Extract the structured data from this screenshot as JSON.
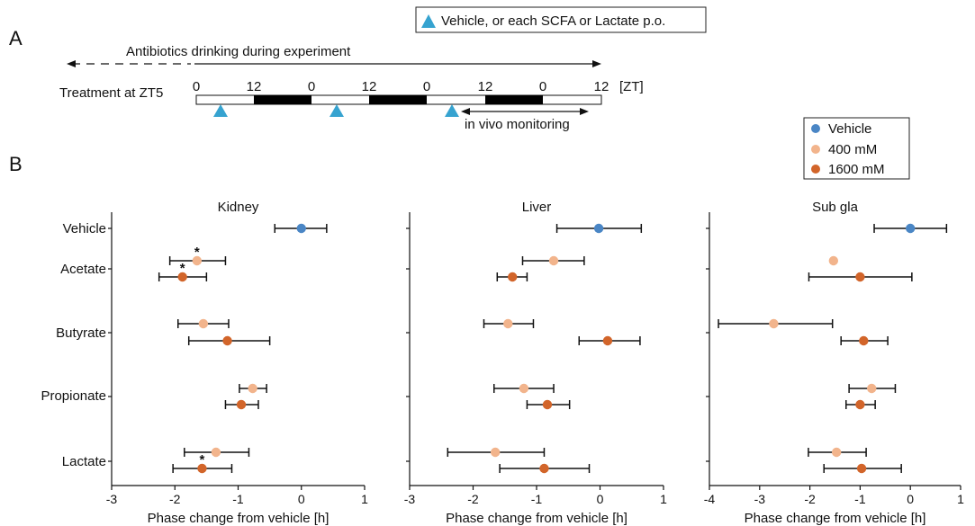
{
  "panel_a": {
    "letter": "A",
    "legend_text": "Vehicle, or each SCFA or Lactate p.o.",
    "antibiotics_text": "Antibiotics drinking during experiment",
    "treatment_text": "Treatment at ZT5",
    "zt_ticks": [
      "0",
      "12",
      "0",
      "12",
      "0",
      "12",
      "0",
      "12"
    ],
    "zt_unit": "[ZT]",
    "monitoring_text": "in vivo monitoring",
    "marker_color": "#36a3d0"
  },
  "panel_b": {
    "letter": "B",
    "legend": [
      {
        "label": "Vehicle",
        "color": "#4a86c5"
      },
      {
        "label": "400 mM",
        "color": "#f2b48c"
      },
      {
        "label": "1600 mM",
        "color": "#d2652a"
      }
    ]
  },
  "chart_data": [
    {
      "type": "scatter",
      "title": "Kidney",
      "xlabel": "Phase change from vehicle [h]",
      "xlim": [
        -3,
        1
      ],
      "xticks": [
        "-3",
        "-2",
        "-1",
        "0",
        "1"
      ],
      "categories": [
        "Vehicle",
        "Acetate",
        "Butyrate",
        "Propionate",
        "Lactate"
      ],
      "points": [
        {
          "category": "Vehicle",
          "group": "Vehicle",
          "value": 0.0,
          "err_low": -0.42,
          "err_high": 0.4,
          "sig": ""
        },
        {
          "category": "Acetate",
          "group": "400 mM",
          "value": -1.65,
          "err_low": -2.08,
          "err_high": -1.2,
          "sig": "*"
        },
        {
          "category": "Acetate",
          "group": "1600 mM",
          "value": -1.88,
          "err_low": -2.25,
          "err_high": -1.5,
          "sig": "*"
        },
        {
          "category": "Butyrate",
          "group": "400 mM",
          "value": -1.55,
          "err_low": -1.95,
          "err_high": -1.15,
          "sig": ""
        },
        {
          "category": "Butyrate",
          "group": "1600 mM",
          "value": -1.17,
          "err_low": -1.78,
          "err_high": -0.5,
          "sig": ""
        },
        {
          "category": "Propionate",
          "group": "400 mM",
          "value": -0.77,
          "err_low": -0.98,
          "err_high": -0.55,
          "sig": ""
        },
        {
          "category": "Propionate",
          "group": "1600 mM",
          "value": -0.95,
          "err_low": -1.2,
          "err_high": -0.68,
          "sig": ""
        },
        {
          "category": "Lactate",
          "group": "400 mM",
          "value": -1.35,
          "err_low": -1.85,
          "err_high": -0.83,
          "sig": ""
        },
        {
          "category": "Lactate",
          "group": "1600 mM",
          "value": -1.57,
          "err_low": -2.03,
          "err_high": -1.1,
          "sig": "*"
        }
      ]
    },
    {
      "type": "scatter",
      "title": "Liver",
      "xlabel": "Phase change from vehicle [h]",
      "xlim": [
        -3,
        1
      ],
      "xticks": [
        "-3",
        "-2",
        "-1",
        "0",
        "1"
      ],
      "categories": [
        "Vehicle",
        "Acetate",
        "Butyrate",
        "Propionate",
        "Lactate"
      ],
      "points": [
        {
          "category": "Vehicle",
          "group": "Vehicle",
          "value": -0.02,
          "err_low": -0.68,
          "err_high": 0.65,
          "sig": ""
        },
        {
          "category": "Acetate",
          "group": "400 mM",
          "value": -0.73,
          "err_low": -1.22,
          "err_high": -0.25,
          "sig": ""
        },
        {
          "category": "Acetate",
          "group": "1600 mM",
          "value": -1.38,
          "err_low": -1.62,
          "err_high": -1.15,
          "sig": ""
        },
        {
          "category": "Butyrate",
          "group": "400 mM",
          "value": -1.45,
          "err_low": -1.83,
          "err_high": -1.05,
          "sig": ""
        },
        {
          "category": "Butyrate",
          "group": "1600 mM",
          "value": 0.12,
          "err_low": -0.33,
          "err_high": 0.63,
          "sig": ""
        },
        {
          "category": "Propionate",
          "group": "400 mM",
          "value": -1.2,
          "err_low": -1.67,
          "err_high": -0.73,
          "sig": ""
        },
        {
          "category": "Propionate",
          "group": "1600 mM",
          "value": -0.83,
          "err_low": -1.15,
          "err_high": -0.48,
          "sig": ""
        },
        {
          "category": "Lactate",
          "group": "400 mM",
          "value": -1.65,
          "err_low": -2.4,
          "err_high": -0.88,
          "sig": ""
        },
        {
          "category": "Lactate",
          "group": "1600 mM",
          "value": -0.88,
          "err_low": -1.58,
          "err_high": -0.17,
          "sig": ""
        }
      ]
    },
    {
      "type": "scatter",
      "title": "Sub gla",
      "xlabel": "Phase change from vehicle [h]",
      "xlim": [
        -4,
        1
      ],
      "xticks": [
        "-4",
        "-3",
        "-2",
        "-1",
        "0",
        "1"
      ],
      "categories": [
        "Vehicle",
        "Acetate",
        "Butyrate",
        "Propionate",
        "Lactate"
      ],
      "points": [
        {
          "category": "Vehicle",
          "group": "Vehicle",
          "value": 0.0,
          "err_low": -0.72,
          "err_high": 0.72,
          "sig": ""
        },
        {
          "category": "Acetate",
          "group": "400 mM",
          "value": -1.53,
          "err_low": null,
          "err_high": null,
          "sig": ""
        },
        {
          "category": "Acetate",
          "group": "1600 mM",
          "value": -1.0,
          "err_low": -2.02,
          "err_high": 0.03,
          "sig": ""
        },
        {
          "category": "Butyrate",
          "group": "400 mM",
          "value": -2.72,
          "err_low": -3.82,
          "err_high": -1.55,
          "sig": ""
        },
        {
          "category": "Butyrate",
          "group": "1600 mM",
          "value": -0.93,
          "err_low": -1.38,
          "err_high": -0.45,
          "sig": ""
        },
        {
          "category": "Propionate",
          "group": "400 mM",
          "value": -0.77,
          "err_low": -1.22,
          "err_high": -0.3,
          "sig": ""
        },
        {
          "category": "Propionate",
          "group": "1600 mM",
          "value": -1.0,
          "err_low": -1.28,
          "err_high": -0.7,
          "sig": ""
        },
        {
          "category": "Lactate",
          "group": "400 mM",
          "value": -1.47,
          "err_low": -2.03,
          "err_high": -0.88,
          "sig": ""
        },
        {
          "category": "Lactate",
          "group": "1600 mM",
          "value": -0.97,
          "err_low": -1.72,
          "err_high": -0.18,
          "sig": ""
        }
      ]
    }
  ]
}
